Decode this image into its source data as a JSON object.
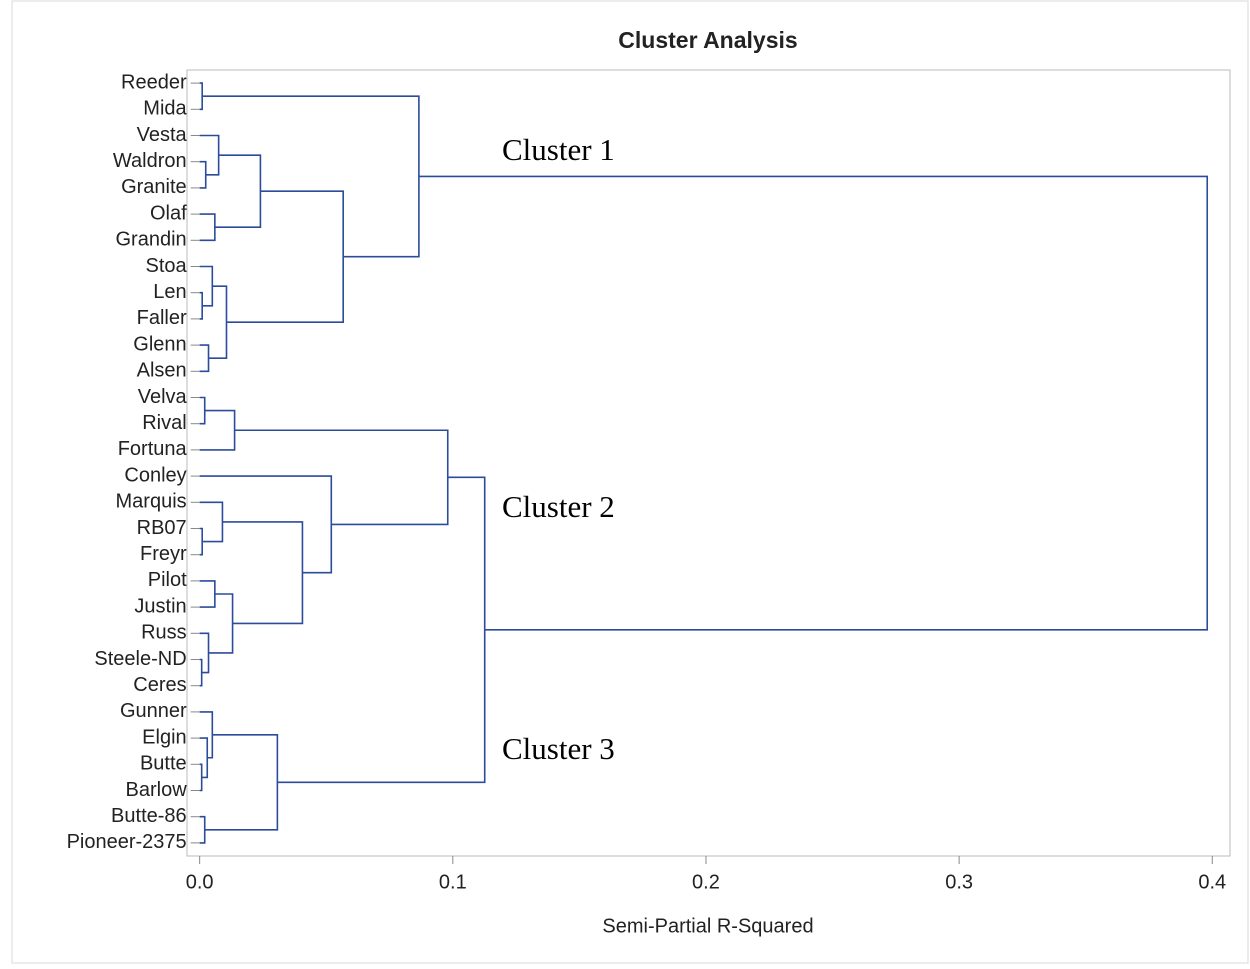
{
  "chart_data": {
    "type": "dendrogram",
    "title": "Cluster Analysis",
    "xlabel": "Semi-Partial R-Squared",
    "color": "#2b4c9b",
    "xlim": [
      -0.005,
      0.407
    ],
    "xticks": [
      {
        "value": 0,
        "label": "0.0"
      },
      0.1,
      0.2,
      0.3,
      0.4
    ],
    "annotations": [
      "Cluster 1",
      "Cluster 2",
      "Cluster 3"
    ],
    "tree": {
      "height": 0.398,
      "children": [
        {
          "height": 0.0866,
          "children": [
            {
              "height": 0.001,
              "children": [
                "Reeder",
                "Mida"
              ]
            },
            {
              "height": 0.0567,
              "children": [
                {
                  "height": 0.024,
                  "children": [
                    {
                      "height": 0.0075,
                      "children": [
                        "Vesta",
                        {
                          "height": 0.0024,
                          "children": [
                            "Waldron",
                            "Granite"
                          ]
                        }
                      ]
                    },
                    {
                      "height": 0.006,
                      "children": [
                        "Olaf",
                        "Grandin"
                      ]
                    }
                  ]
                },
                {
                  "height": 0.0106,
                  "children": [
                    {
                      "height": 0.005,
                      "children": [
                        "Stoa",
                        {
                          "height": 0.001,
                          "children": [
                            "Len",
                            "Faller"
                          ]
                        }
                      ]
                    },
                    {
                      "height": 0.0035,
                      "children": [
                        "Glenn",
                        "Alsen"
                      ]
                    }
                  ]
                }
              ]
            }
          ]
        },
        {
          "height": 0.1126,
          "children": [
            {
              "height": 0.098,
              "children": [
                {
                  "height": 0.0138,
                  "children": [
                    {
                      "height": 0.002,
                      "children": [
                        "Velva",
                        "Rival"
                      ]
                    },
                    "Fortuna"
                  ]
                },
                {
                  "height": 0.052,
                  "children": [
                    "Conley",
                    {
                      "height": 0.0406,
                      "children": [
                        {
                          "height": 0.009,
                          "children": [
                            "Marquis",
                            {
                              "height": 0.001,
                              "children": [
                                "RB07",
                                "Freyr"
                              ]
                            }
                          ]
                        },
                        {
                          "height": 0.013,
                          "children": [
                            {
                              "height": 0.006,
                              "children": [
                                "Pilot",
                                "Justin"
                              ]
                            },
                            {
                              "height": 0.0035,
                              "children": [
                                "Russ",
                                {
                                  "height": 0.0008,
                                  "children": [
                                    "Steele-ND",
                                    "Ceres"
                                  ]
                                }
                              ]
                            }
                          ]
                        }
                      ]
                    }
                  ]
                }
              ]
            },
            {
              "height": 0.0307,
              "children": [
                {
                  "height": 0.005,
                  "children": [
                    "Gunner",
                    {
                      "height": 0.003,
                      "children": [
                        "Elgin",
                        {
                          "height": 0.0008,
                          "children": [
                            "Butte",
                            "Barlow"
                          ]
                        }
                      ]
                    }
                  ]
                },
                {
                  "height": 0.002,
                  "children": [
                    "Butte-86",
                    "Pioneer-2375"
                  ]
                }
              ]
            }
          ]
        }
      ]
    }
  }
}
